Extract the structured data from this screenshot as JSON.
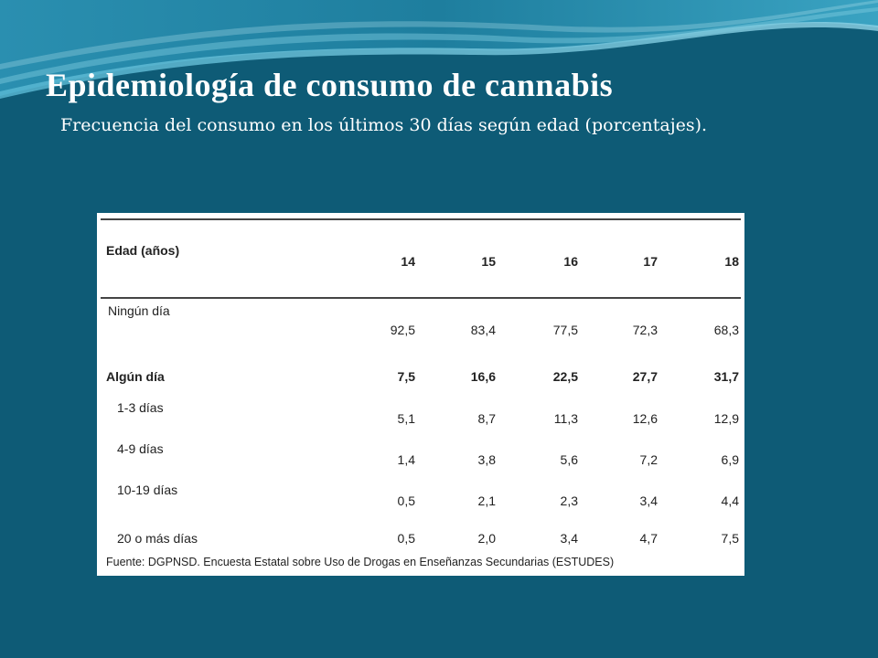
{
  "slide": {
    "title": "Epidemiología de consumo de cannabis",
    "subtitle": "Frecuencia del consumo en los últimos 30 días según edad (porcentajes)."
  },
  "table": {
    "header_label": "Edad (años)",
    "ages": [
      "14",
      "15",
      "16",
      "17",
      "18"
    ],
    "rows": [
      {
        "label": "Ningún día",
        "values": [
          "92,5",
          "83,4",
          "77,5",
          "72,3",
          "68,3"
        ]
      },
      {
        "label": "Algún día",
        "values": [
          "7,5",
          "16,6",
          "22,5",
          "27,7",
          "31,7"
        ]
      },
      {
        "label": "1-3 días",
        "values": [
          "5,1",
          "8,7",
          "11,3",
          "12,6",
          "12,9"
        ]
      },
      {
        "label": "4-9 días",
        "values": [
          "1,4",
          "3,8",
          "5,6",
          "7,2",
          "6,9"
        ]
      },
      {
        "label": "10-19 días",
        "values": [
          "0,5",
          "2,1",
          "2,3",
          "3,4",
          "4,4"
        ]
      },
      {
        "label": "20 o más días",
        "values": [
          "0,5",
          "2,0",
          "3,4",
          "4,7",
          "7,5"
        ]
      }
    ],
    "source": "Fuente: DGPNSD. Encuesta Estatal sobre Uso de Drogas en Enseñanzas Secundarias (ESTUDES)"
  }
}
